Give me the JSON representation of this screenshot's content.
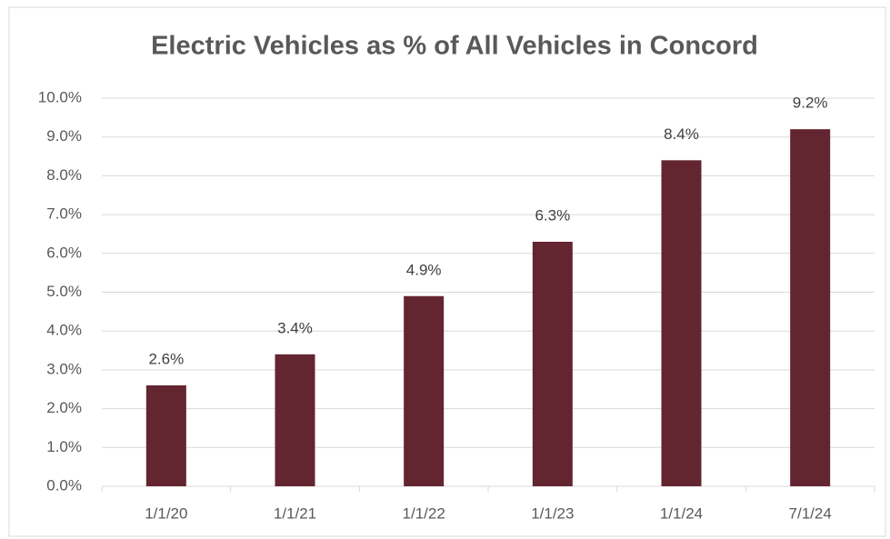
{
  "chart_data": {
    "type": "bar",
    "title": "Electric Vehicles as % of All Vehicles in Concord",
    "categories": [
      "1/1/20",
      "1/1/21",
      "1/1/22",
      "1/1/23",
      "1/1/24",
      "7/1/24"
    ],
    "values": [
      2.6,
      3.4,
      4.9,
      6.3,
      8.4,
      9.2
    ],
    "value_labels": [
      "2.6%",
      "3.4%",
      "4.9%",
      "6.3%",
      "8.4%",
      "9.2%"
    ],
    "color": "#632530",
    "ylim": [
      0,
      10
    ],
    "yticks": [
      {
        "value": 0,
        "label": "0.0%"
      },
      {
        "value": 1,
        "label": "1.0%"
      },
      {
        "value": 2,
        "label": "2.0%"
      },
      {
        "value": 3,
        "label": "3.0%"
      },
      {
        "value": 4,
        "label": "4.0%"
      },
      {
        "value": 5,
        "label": "5.0%"
      },
      {
        "value": 6,
        "label": "6.0%"
      },
      {
        "value": 7,
        "label": "7.0%"
      },
      {
        "value": 8,
        "label": "8.0%"
      },
      {
        "value": 9,
        "label": "9.0%"
      },
      {
        "value": 10,
        "label": "10.0%"
      }
    ],
    "grid": true
  }
}
